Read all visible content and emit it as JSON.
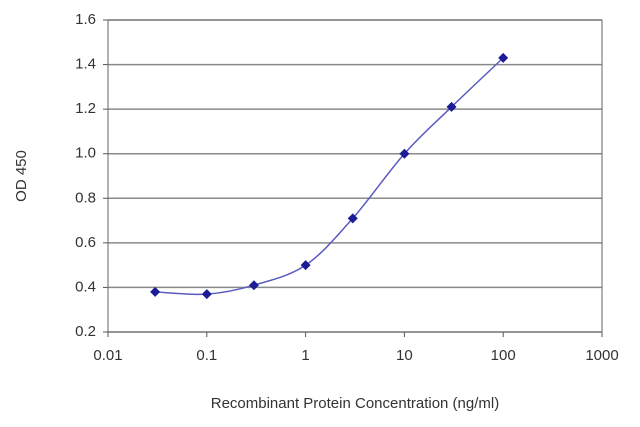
{
  "chart_data": {
    "type": "scatter",
    "x_label": "Recombinant Protein Concentration (ng/ml)",
    "y_label": "OD 450",
    "x": [
      0.03,
      0.1,
      0.3,
      1,
      3,
      10,
      30,
      100
    ],
    "series": [
      {
        "color": "#1c1c96",
        "values": [
          0.38,
          0.37,
          0.41,
          0.5,
          0.71,
          1.0,
          1.21,
          1.43
        ]
      }
    ],
    "xlim": [
      0.01,
      1000
    ],
    "xticks": [
      0.01,
      0.1,
      1,
      10,
      100,
      1000
    ],
    "xscale": "log",
    "ylim": [
      0.2,
      1.6
    ],
    "yticks": [
      0.2,
      0.4,
      0.6,
      0.8,
      {
        "value": 1,
        "label": "1.0"
      },
      1.2,
      1.4,
      1.6
    ],
    "grid": true,
    "line_color": "#5a5ac0"
  }
}
